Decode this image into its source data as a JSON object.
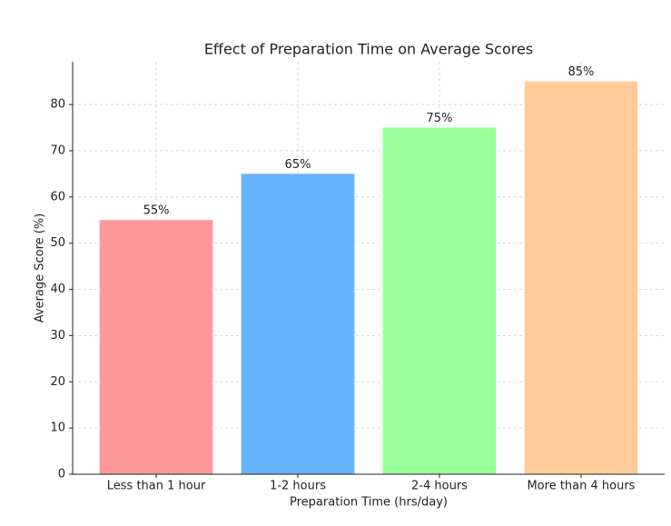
{
  "chart_data": {
    "type": "bar",
    "title": "Effect of Preparation Time on Average Scores",
    "x_label": "Preparation Time (hrs/day)",
    "y_label": "Average Score (%)",
    "categories": [
      "Less than 1 hour",
      "1-2 hours",
      "2-4 hours",
      "More than 4 hours"
    ],
    "values": [
      55,
      65,
      75,
      85
    ],
    "value_labels": [
      "55%",
      "65%",
      "75%",
      "85%"
    ],
    "colors": [
      "#ff9999",
      "#66b3ff",
      "#99ff99",
      "#ffcc99"
    ],
    "ylim": [
      0,
      89.25
    ],
    "yticks": [
      0,
      10,
      20,
      30,
      40,
      50,
      60,
      70,
      80
    ],
    "grid": true
  }
}
